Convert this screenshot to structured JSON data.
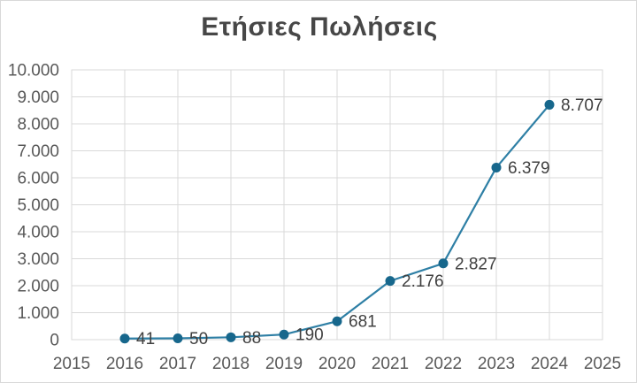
{
  "window": {
    "background": "#ffffff",
    "border_color": "#d9d9d9"
  },
  "chart_data": {
    "type": "line",
    "title": "Ετήσιες Πωλήσεις",
    "x": [
      2016,
      2017,
      2018,
      2019,
      2020,
      2021,
      2022,
      2023,
      2024
    ],
    "values": [
      41,
      50,
      88,
      190,
      681,
      2176,
      2827,
      6379,
      8707
    ],
    "point_labels": [
      "41",
      "50",
      "88",
      "190",
      "681",
      "2.176",
      "2.827",
      "6.379",
      "8.707"
    ],
    "x_ticks": [
      "2015",
      "2016",
      "2017",
      "2018",
      "2019",
      "2020",
      "2021",
      "2022",
      "2023",
      "2024",
      "2025"
    ],
    "y_ticks": [
      "0",
      "1.000",
      "2.000",
      "3.000",
      "4.000",
      "5.000",
      "6.000",
      "7.000",
      "8.000",
      "9.000",
      "10.000"
    ],
    "xlim": [
      2015,
      2025
    ],
    "ylim": [
      0,
      10000
    ],
    "xlabel": "",
    "ylabel": "",
    "grid": true,
    "legend": false,
    "colors": {
      "line": "#2e7fa5",
      "marker": "#17678c",
      "grid": "#d9d9d9",
      "plot_border": "#d9d9d9",
      "axis_text": "#595959",
      "label_text": "#404040",
      "title_text": "#474747"
    }
  }
}
